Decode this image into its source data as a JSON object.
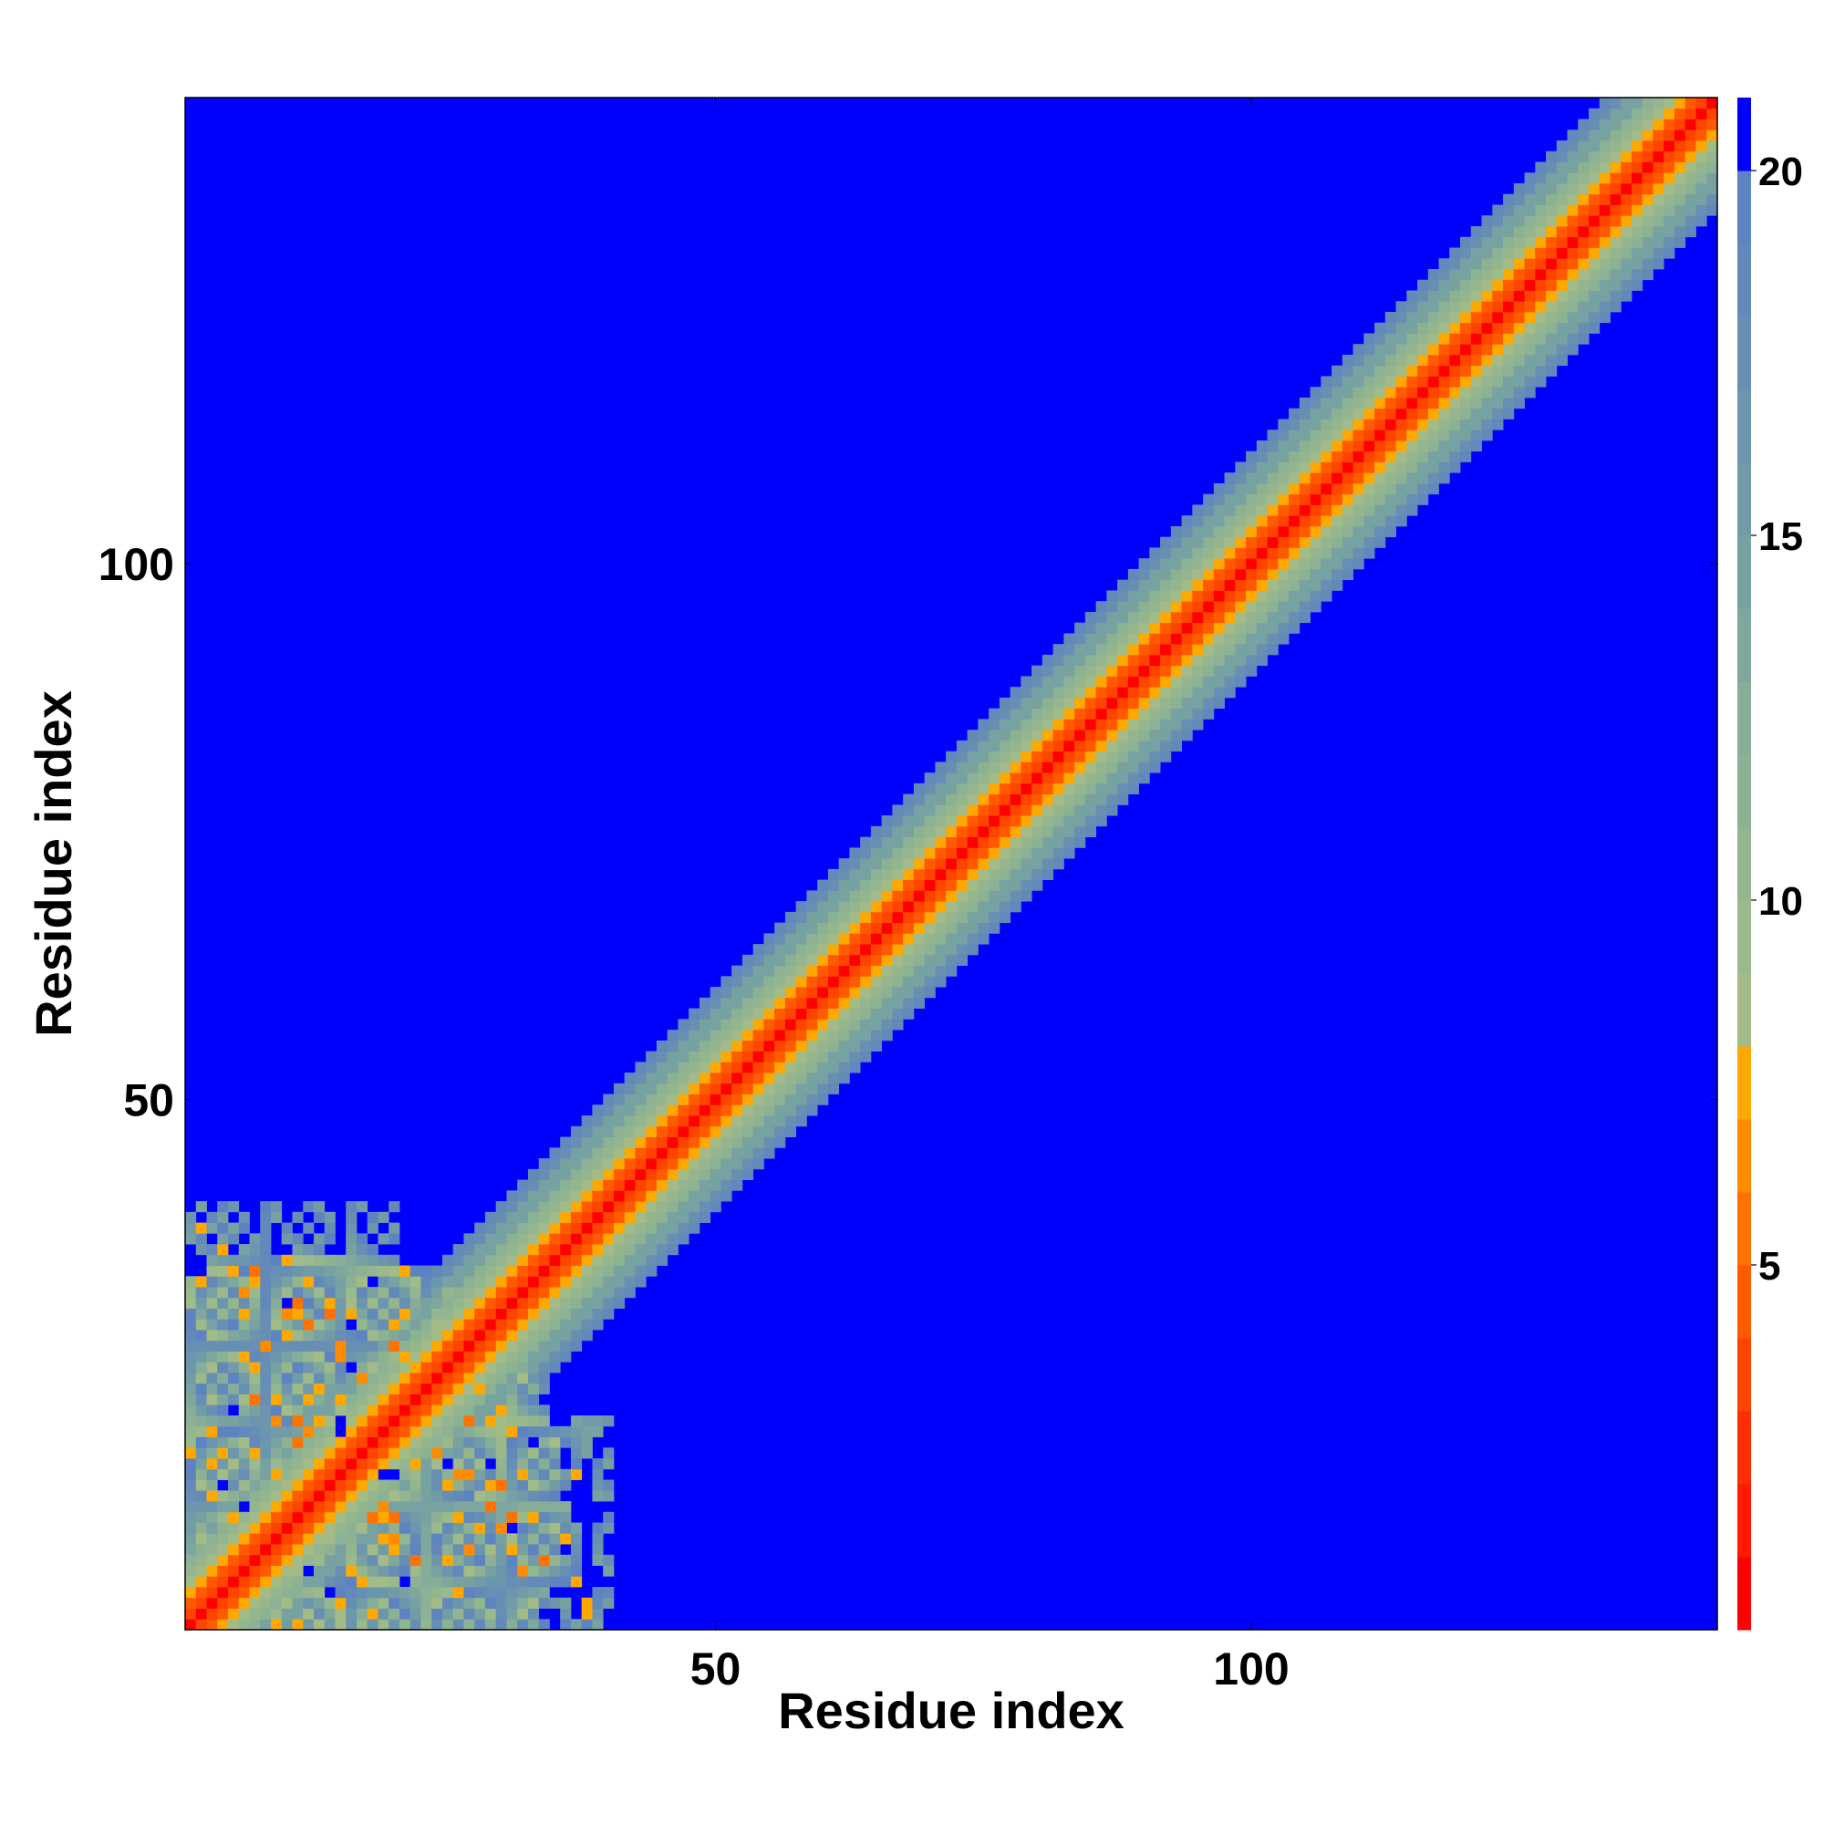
{
  "chart_data": {
    "type": "heatmap",
    "description_of_values": "pairwise residue distance map (color scale 0-21+)",
    "n_residues": 143,
    "x_range": [
      1,
      143
    ],
    "y_range": [
      1,
      143
    ],
    "xlabel": "Residue index",
    "ylabel": "Residue index",
    "x_ticks": [
      50,
      100
    ],
    "y_ticks": [
      50,
      100
    ],
    "colorbar": {
      "range": [
        0,
        21
      ],
      "ticks": [
        5,
        10,
        15,
        20
      ],
      "bins": [
        {
          "upper": 1,
          "color": "#ff0000"
        },
        {
          "upper": 2,
          "color": "#ff1a00"
        },
        {
          "upper": 3,
          "color": "#ff2e00"
        },
        {
          "upper": 4,
          "color": "#ff4400"
        },
        {
          "upper": 5,
          "color": "#ff5a00"
        },
        {
          "upper": 6,
          "color": "#ff7200"
        },
        {
          "upper": 7,
          "color": "#ff8c00"
        },
        {
          "upper": 8,
          "color": "#ffa800"
        },
        {
          "upper": 9,
          "color": "#a2bb87"
        },
        {
          "upper": 10,
          "color": "#9bb98b"
        },
        {
          "upper": 11,
          "color": "#94b68f"
        },
        {
          "upper": 12,
          "color": "#8db293"
        },
        {
          "upper": 13,
          "color": "#86ad98"
        },
        {
          "upper": 14,
          "color": "#7fa79d"
        },
        {
          "upper": 15,
          "color": "#78a1a2"
        },
        {
          "upper": 16,
          "color": "#729ba8"
        },
        {
          "upper": 17,
          "color": "#6c95ae"
        },
        {
          "upper": 18,
          "color": "#678fb4"
        },
        {
          "upper": 19,
          "color": "#6289ba"
        },
        {
          "upper": 20,
          "color": "#5d83c0"
        },
        {
          "upper": 21,
          "color": "#0000ff"
        }
      ]
    },
    "diagonal_band": {
      "distance_per_residue_offset": [
        0.0,
        3.8,
        5.6,
        7.4,
        9.2,
        11.0,
        12.6,
        14.2,
        15.8,
        17.4,
        19.0,
        20.6
      ],
      "beyond_offset_value": 22
    },
    "n_terminal_cluster": {
      "residue_range": [
        1,
        40
      ],
      "typical_values": [
        8,
        9,
        10,
        11,
        12,
        13,
        14,
        15,
        16,
        17,
        18,
        19,
        20,
        22
      ],
      "close_contacts": [
        {
          "i": 7,
          "j": 34,
          "value": 7
        },
        {
          "i": 11,
          "j": 31,
          "value": 6
        },
        {
          "i": 12,
          "j": 29,
          "value": 7
        },
        {
          "i": 14,
          "j": 30,
          "value": 6
        },
        {
          "i": 15,
          "j": 27,
          "value": 7
        },
        {
          "i": 11,
          "j": 20,
          "value": 6
        },
        {
          "i": 12,
          "j": 19,
          "value": 7
        },
        {
          "i": 17,
          "j": 24,
          "value": 7
        },
        {
          "i": 18,
          "j": 11,
          "value": 6
        },
        {
          "i": 20,
          "j": 9,
          "value": 7
        },
        {
          "i": 22,
          "j": 7,
          "value": 6
        },
        {
          "i": 27,
          "j": 8,
          "value": 7
        },
        {
          "i": 29,
          "j": 12,
          "value": 6
        },
        {
          "i": 30,
          "j": 10,
          "value": 7
        },
        {
          "i": 32,
          "j": 6,
          "value": 7
        },
        {
          "i": 34,
          "j": 7,
          "value": 6
        },
        {
          "i": 26,
          "j": 15,
          "value": 7
        },
        {
          "i": 20,
          "j": 27,
          "value": 6
        }
      ],
      "far_pairs": [
        {
          "i": 5,
          "j": 21,
          "value": 22
        },
        {
          "i": 15,
          "j": 20,
          "value": 22
        },
        {
          "i": 16,
          "j": 29,
          "value": 22
        },
        {
          "i": 21,
          "j": 36,
          "value": 22
        },
        {
          "i": 15,
          "j": 19,
          "value": 22
        },
        {
          "i": 25,
          "j": 16,
          "value": 22
        },
        {
          "i": 31,
          "j": 10,
          "value": 22
        },
        {
          "i": 12,
          "j": 6,
          "value": 22
        },
        {
          "i": 4,
          "j": 14,
          "value": 22
        },
        {
          "i": 18,
          "j": 33,
          "value": 22
        }
      ]
    }
  }
}
